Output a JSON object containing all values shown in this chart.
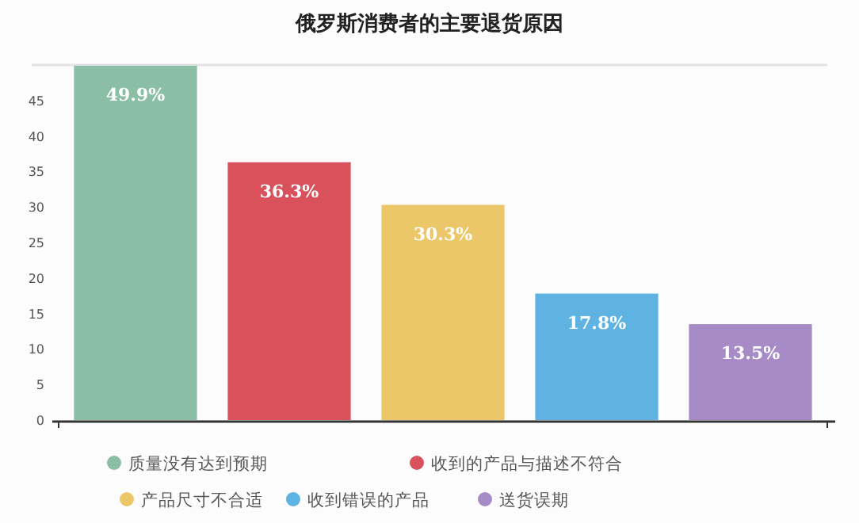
{
  "chart_data": {
    "type": "bar",
    "title": "俄罗斯消费者的主要退货原因",
    "categories": [
      null,
      null,
      null,
      null,
      null
    ],
    "series": [
      {
        "name": "质量没有达到预期",
        "color": "#8bbfa5",
        "values": [
          49.9,
          null,
          null,
          null,
          null
        ],
        "value_labels": [
          "49.9%",
          null,
          null,
          null,
          null
        ]
      },
      {
        "name": "收到的产品与描述不符合",
        "color": "#d9515b",
        "values": [
          null,
          36.3,
          null,
          null,
          null
        ],
        "value_labels": [
          null,
          "36.3%",
          null,
          null,
          null
        ]
      },
      {
        "name": "产品尺寸不合适",
        "color": "#ecc76a",
        "values": [
          null,
          null,
          30.3,
          null,
          null
        ],
        "value_labels": [
          null,
          null,
          "30.3%",
          null,
          null
        ]
      },
      {
        "name": "收到错误的产品",
        "color": "#5eb3e3",
        "values": [
          null,
          null,
          null,
          17.8,
          null
        ],
        "value_labels": [
          null,
          null,
          null,
          "17.8%",
          null
        ]
      },
      {
        "name": "送货误期",
        "color": "#a68bc6",
        "values": [
          null,
          null,
          null,
          null,
          13.5
        ],
        "value_labels": [
          null,
          null,
          null,
          null,
          "13.5%"
        ]
      }
    ],
    "ylim": [
      0,
      50
    ],
    "yticks": [
      0,
      5,
      10,
      15,
      20,
      25,
      30,
      35,
      40,
      45
    ],
    "tick_labels": "y",
    "legend": "bottom"
  }
}
